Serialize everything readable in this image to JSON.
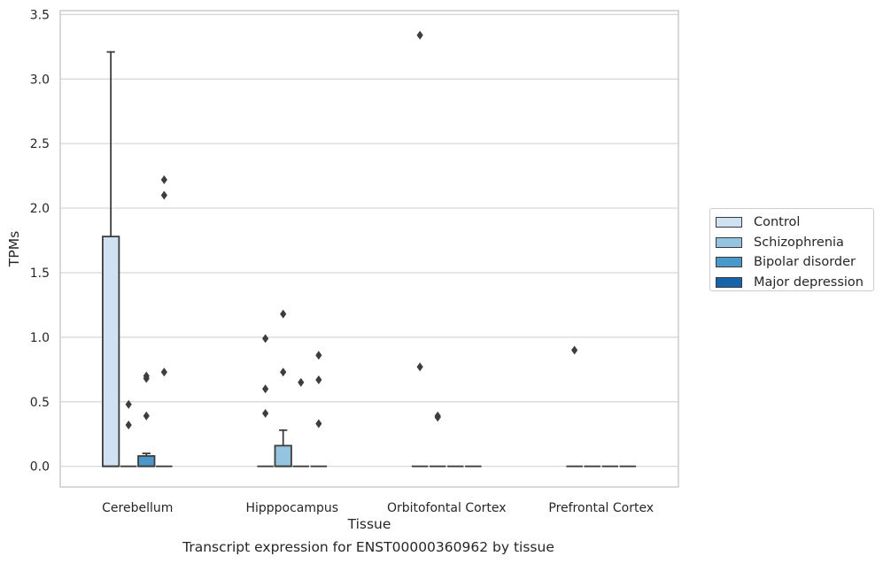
{
  "chart_data": {
    "type": "box",
    "caption": "Transcript expression for ENST00000360962 by tissue",
    "xlabel": "Tissue",
    "ylabel": "TPMs",
    "ylim": [
      -0.16,
      3.53
    ],
    "yticks": [
      "0.0",
      "0.5",
      "1.0",
      "1.5",
      "2.0",
      "2.5",
      "3.0",
      "3.5"
    ],
    "categories": [
      "Cerebellum",
      "Hipppocampus",
      "Orbitofontal Cortex",
      "Prefrontal Cortex"
    ],
    "grid": "horizontal",
    "legend_position": "right",
    "series": [
      {
        "name": "Control",
        "color": "#d0e1f2",
        "boxes": [
          {
            "q1": 0.0,
            "median": 0.0,
            "q3": 1.78,
            "whisker_low": 0.0,
            "whisker_high": 3.21,
            "outliers": []
          },
          {
            "q1": 0.0,
            "median": 0.0,
            "q3": 0.0,
            "whisker_low": 0.0,
            "whisker_high": 0.0,
            "outliers": [
              0.41,
              0.6,
              0.99
            ]
          },
          {
            "q1": 0.0,
            "median": 0.0,
            "q3": 0.0,
            "whisker_low": 0.0,
            "whisker_high": 0.0,
            "outliers": [
              0.77,
              3.34
            ]
          },
          {
            "q1": 0.0,
            "median": 0.0,
            "q3": 0.0,
            "whisker_low": 0.0,
            "whisker_high": 0.0,
            "outliers": [
              0.9
            ]
          }
        ]
      },
      {
        "name": "Schizophrenia",
        "color": "#94c4df",
        "boxes": [
          {
            "q1": 0.0,
            "median": 0.0,
            "q3": 0.0,
            "whisker_low": 0.0,
            "whisker_high": 0.0,
            "outliers": [
              0.32,
              0.48
            ]
          },
          {
            "q1": 0.0,
            "median": 0.0,
            "q3": 0.16,
            "whisker_low": 0.0,
            "whisker_high": 0.28,
            "outliers": [
              0.73,
              1.18
            ]
          },
          {
            "q1": 0.0,
            "median": 0.0,
            "q3": 0.0,
            "whisker_low": 0.0,
            "whisker_high": 0.0,
            "outliers": [
              0.38,
              0.39
            ]
          },
          {
            "q1": 0.0,
            "median": 0.0,
            "q3": 0.0,
            "whisker_low": 0.0,
            "whisker_high": 0.0,
            "outliers": []
          }
        ]
      },
      {
        "name": "Bipolar disorder",
        "color": "#4a98c9",
        "boxes": [
          {
            "q1": 0.0,
            "median": 0.0,
            "q3": 0.08,
            "whisker_low": 0.0,
            "whisker_high": 0.1,
            "outliers": [
              0.39,
              0.68,
              0.7
            ]
          },
          {
            "q1": 0.0,
            "median": 0.0,
            "q3": 0.0,
            "whisker_low": 0.0,
            "whisker_high": 0.0,
            "outliers": [
              0.65
            ]
          },
          {
            "q1": 0.0,
            "median": 0.0,
            "q3": 0.0,
            "whisker_low": 0.0,
            "whisker_high": 0.0,
            "outliers": []
          },
          {
            "q1": 0.0,
            "median": 0.0,
            "q3": 0.0,
            "whisker_low": 0.0,
            "whisker_high": 0.0,
            "outliers": []
          }
        ]
      },
      {
        "name": "Major depression",
        "color": "#1764ab",
        "boxes": [
          {
            "q1": 0.0,
            "median": 0.0,
            "q3": 0.0,
            "whisker_low": 0.0,
            "whisker_high": 0.0,
            "outliers": [
              0.73,
              2.1,
              2.22
            ]
          },
          {
            "q1": 0.0,
            "median": 0.0,
            "q3": 0.0,
            "whisker_low": 0.0,
            "whisker_high": 0.0,
            "outliers": [
              0.33,
              0.67,
              0.86
            ]
          },
          {
            "q1": 0.0,
            "median": 0.0,
            "q3": 0.0,
            "whisker_low": 0.0,
            "whisker_high": 0.0,
            "outliers": []
          },
          {
            "q1": 0.0,
            "median": 0.0,
            "q3": 0.0,
            "whisker_low": 0.0,
            "whisker_high": 0.0,
            "outliers": []
          }
        ]
      }
    ]
  }
}
